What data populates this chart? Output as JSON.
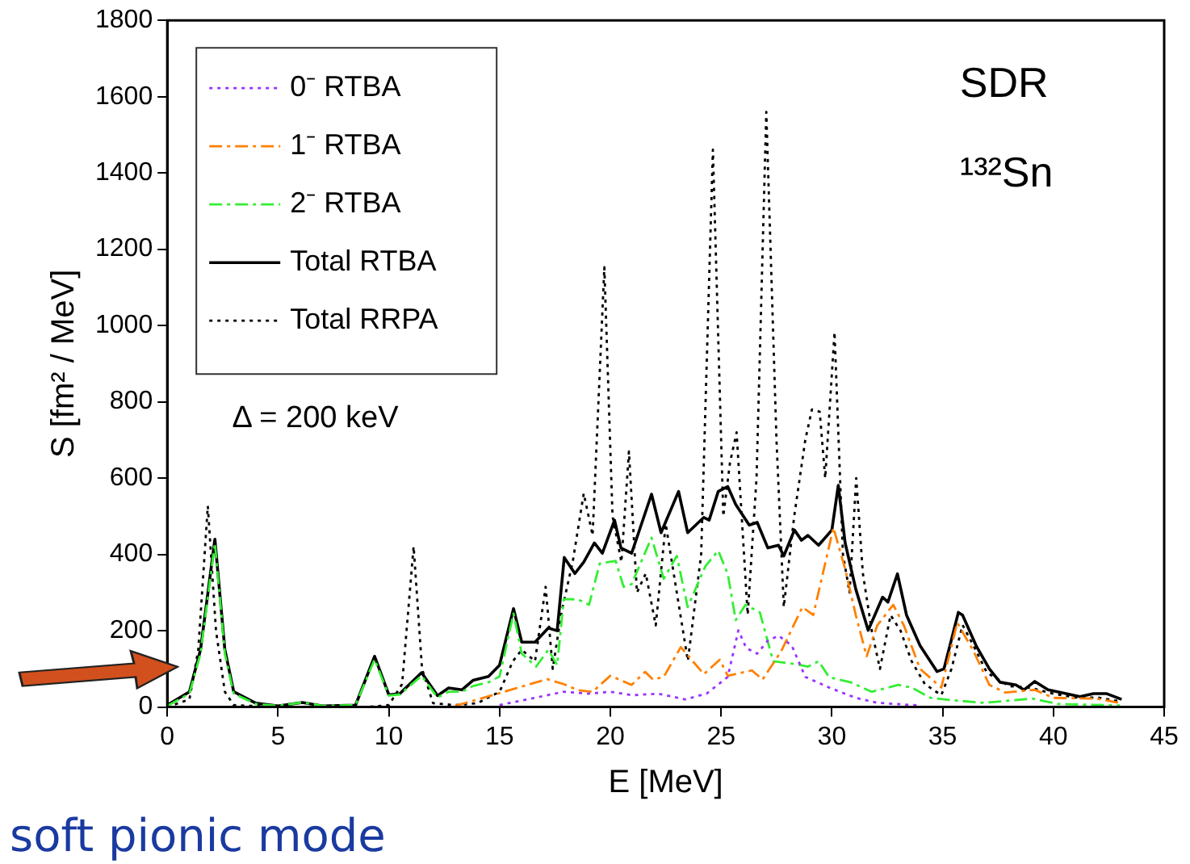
{
  "chart_data": {
    "type": "line",
    "xlabel": "E [MeV]",
    "ylabel": "S [fm² / MeV]",
    "xlim": [
      0,
      45
    ],
    "xticks": [
      0,
      5,
      10,
      15,
      20,
      25,
      30,
      35,
      40,
      45
    ],
    "ylim": [
      0,
      1800
    ],
    "yticks": [
      0,
      200,
      400,
      600,
      800,
      1000,
      1200,
      1400,
      1600,
      1800
    ],
    "grid": false,
    "legend": "top left",
    "marker": "none",
    "annotations": [
      "SDR",
      "¹³²Sn",
      "Δ = 200 keV",
      "soft pionic mode"
    ],
    "series": [
      {
        "name": "0⁻ RTBA",
        "color": "#9933ff",
        "line_style": "dotted",
        "x": [
          15,
          17.9,
          19,
          20,
          21,
          22.17,
          23.37,
          24.34,
          25.3,
          25.78,
          26.14,
          26.63,
          27.11,
          27.59,
          28.19,
          28.8,
          29.88,
          31.08,
          32.05,
          33.98
        ],
        "values": [
          5,
          40,
          35,
          40,
          31,
          35,
          20,
          35,
          79,
          201,
          154,
          140,
          174,
          187,
          161,
          79,
          51,
          24,
          11,
          4
        ]
      },
      {
        "name": "1⁻ RTBA",
        "color": "#ff8000",
        "line_style": "dashed",
        "x": [
          13,
          14.74,
          17.15,
          17.9,
          18.55,
          19.2,
          20,
          20.96,
          21.57,
          21.93,
          22.41,
          23.18,
          24.22,
          24.94,
          25.3,
          26.39,
          26.87,
          27.71,
          28.67,
          29.16,
          30.07,
          30.6,
          31.08,
          31.57,
          32.05,
          32.77,
          33.25,
          33.98,
          34.94,
          35.66,
          36.39,
          37.11,
          37.83,
          39.16,
          40,
          41.93,
          43
        ],
        "values": [
          3,
          32,
          73,
          60,
          44,
          40,
          82,
          58,
          92,
          72,
          79,
          157,
          86,
          124,
          82,
          96,
          72,
          146,
          262,
          241,
          470,
          362,
          241,
          133,
          214,
          268,
          214,
          100,
          51,
          221,
          147,
          58,
          38,
          45,
          24,
          22,
          11
        ]
      },
      {
        "name": "2⁻ RTBA",
        "color": "#33ee33",
        "line_style": "dashed",
        "x": [
          0,
          1,
          1.5,
          2.15,
          2.6,
          3,
          4,
          5,
          6.1,
          7,
          8.5,
          9.36,
          10,
          10.5,
          11.48,
          12.2,
          12.7,
          13.3,
          13.8,
          14.5,
          15,
          15.63,
          16,
          16.65,
          17.2,
          17.6,
          17.9,
          18.55,
          19.04,
          19.52,
          20.24,
          20.6,
          20.96,
          21.86,
          22.41,
          23,
          23.49,
          24.29,
          24.87,
          25.3,
          25.66,
          26.1,
          26.75,
          27.35,
          28.31,
          28.92,
          29.4,
          29.88,
          30.84,
          31.8,
          33,
          33.6,
          34.46,
          35.4,
          36.87,
          39.04,
          40.2,
          43
        ],
        "values": [
          3,
          35,
          140,
          430,
          140,
          35,
          8,
          3,
          12,
          3,
          5,
          125,
          30,
          33,
          82,
          25,
          40,
          40,
          55,
          65,
          80,
          245,
          140,
          106,
          150,
          110,
          283,
          282,
          268,
          376,
          383,
          315,
          322,
          444,
          336,
          396,
          262,
          369,
          410,
          349,
          228,
          268,
          248,
          120,
          113,
          106,
          120,
          78,
          65,
          40,
          58,
          51,
          24,
          18,
          11,
          22,
          8,
          4
        ]
      },
      {
        "name": "Total RTBA",
        "color": "#000000",
        "line_style": "solid",
        "x": [
          0,
          1,
          1.5,
          2.15,
          2.6,
          3,
          4,
          5,
          6.1,
          7,
          8.5,
          9.36,
          10,
          10.5,
          11.48,
          12.2,
          12.7,
          13.3,
          13.8,
          14.5,
          15,
          15.63,
          16,
          16.6,
          17.2,
          17.6,
          17.92,
          18.4,
          18.8,
          19.28,
          19.64,
          20.19,
          20.48,
          20.96,
          21.86,
          22.29,
          23.08,
          23.49,
          24.22,
          24.46,
          24.87,
          25.3,
          25.66,
          26.27,
          26.63,
          27.11,
          27.59,
          27.83,
          28.31,
          28.63,
          28.92,
          29.4,
          30,
          30.29,
          30.6,
          31.08,
          31.64,
          32.29,
          32.53,
          32.96,
          33.37,
          33.98,
          34.75,
          35.06,
          35.71,
          35.9,
          36.51,
          37.11,
          37.59,
          38.31,
          38.67,
          39.16,
          39.76,
          40.36,
          41.2,
          41.81,
          42.41,
          43.08
        ],
        "values": [
          5,
          40,
          150,
          440,
          150,
          40,
          10,
          3,
          12,
          3,
          5,
          133,
          32,
          35,
          90,
          30,
          50,
          45,
          70,
          80,
          110,
          258,
          170,
          170,
          207,
          200,
          392,
          350,
          380,
          430,
          403,
          490,
          417,
          403,
          558,
          457,
          565,
          457,
          497,
          490,
          565,
          578,
          531,
          477,
          484,
          417,
          424,
          396,
          464,
          437,
          450,
          424,
          464,
          581,
          430,
          309,
          201,
          288,
          275,
          349,
          241,
          161,
          93,
          100,
          248,
          241,
          161,
          100,
          65,
          58,
          45,
          67,
          45,
          38,
          27,
          35,
          35,
          20
        ]
      },
      {
        "name": "Total RRPA",
        "color": "#000000",
        "line_style": "dotted",
        "x": [
          0,
          1,
          1.4,
          1.83,
          2.2,
          2.6,
          3,
          5,
          9,
          10,
          10.6,
          11.12,
          11.5,
          12,
          13,
          14,
          15,
          15.6,
          16,
          16.6,
          17.08,
          17.4,
          17.8,
          18.3,
          18.8,
          19.2,
          19.73,
          20.1,
          20.5,
          20.84,
          21.2,
          21.6,
          22.05,
          22.5,
          23,
          23.5,
          24.1,
          24.63,
          25.1,
          25.4,
          25.7,
          26.2,
          26.6,
          27.04,
          27.5,
          27.83,
          28.3,
          28.8,
          29.1,
          29.45,
          29.7,
          30.12,
          30.5,
          30.8,
          31.1,
          31.4,
          31.8,
          32.17,
          32.65,
          33.1,
          33.6,
          34.2,
          34.94,
          35.4,
          35.9,
          36.4,
          37,
          38,
          39,
          40,
          41,
          42,
          43
        ],
        "values": [
          0,
          20,
          150,
          527,
          200,
          40,
          5,
          0,
          0,
          5,
          60,
          421,
          100,
          10,
          5,
          10,
          40,
          120,
          150,
          120,
          315,
          100,
          250,
          380,
          560,
          450,
          1153,
          500,
          380,
          670,
          300,
          350,
          214,
          480,
          300,
          121,
          400,
          1461,
          500,
          640,
          720,
          242,
          600,
          1560,
          700,
          262,
          500,
          700,
          780,
          774,
          600,
          983,
          400,
          300,
          600,
          350,
          200,
          100,
          241,
          200,
          120,
          60,
          31,
          100,
          215,
          160,
          90,
          55,
          50,
          35,
          25,
          25,
          15
        ]
      }
    ]
  }
}
